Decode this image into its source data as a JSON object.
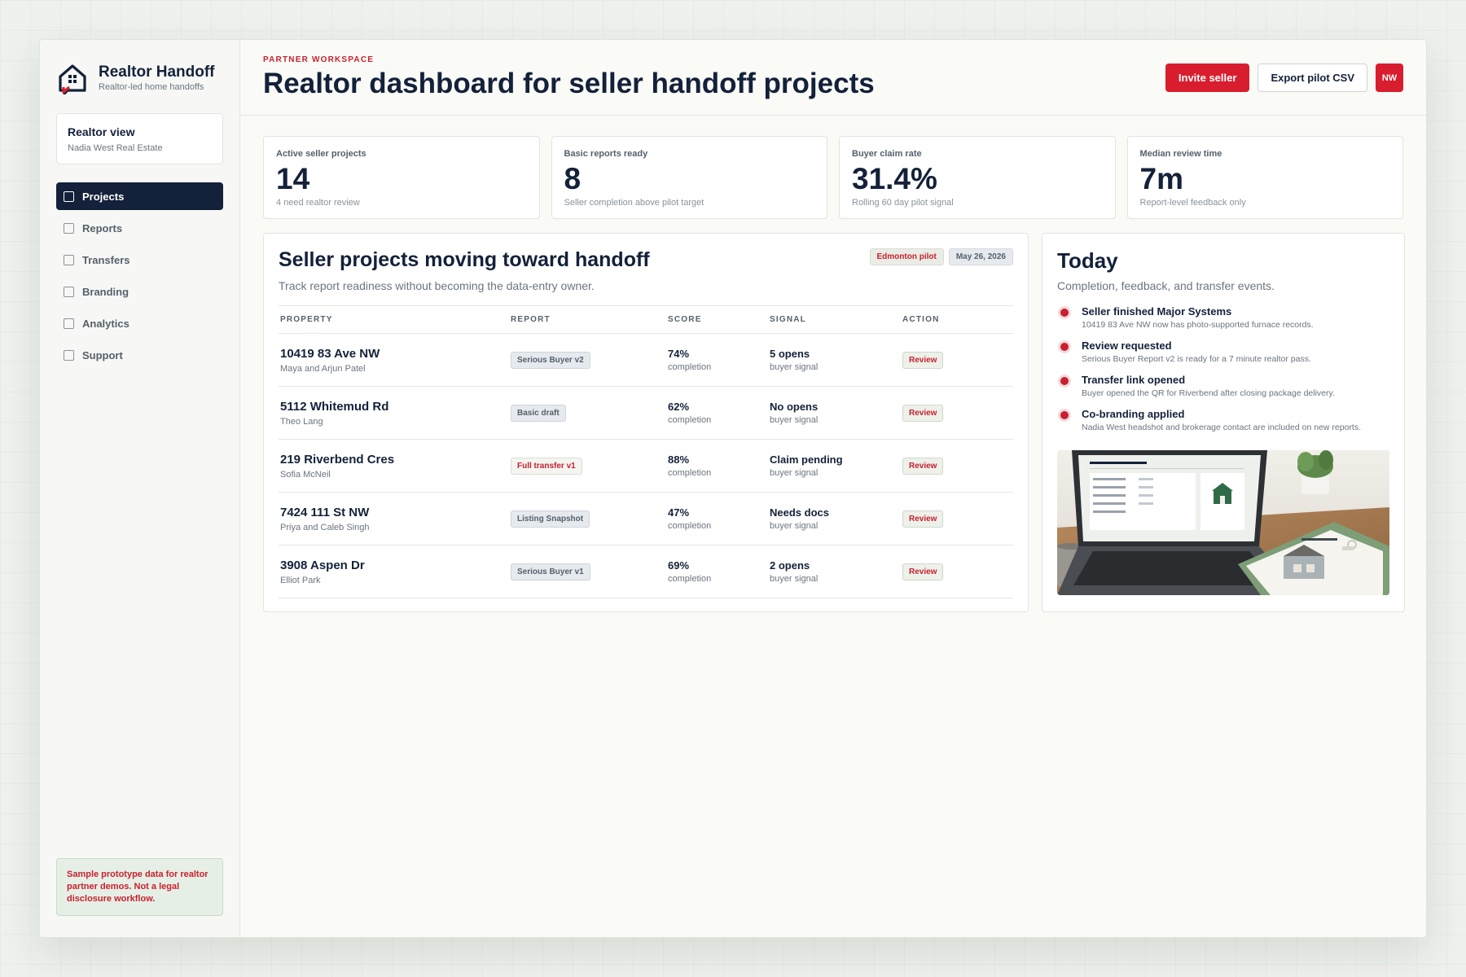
{
  "brand": {
    "title": "Realtor Handoff",
    "subtitle": "Realtor-led home handoffs"
  },
  "realtor_view": {
    "title": "Realtor view",
    "subtitle": "Nadia West Real Estate"
  },
  "nav": [
    {
      "label": "Projects",
      "active": true
    },
    {
      "label": "Reports",
      "active": false
    },
    {
      "label": "Transfers",
      "active": false
    },
    {
      "label": "Branding",
      "active": false
    },
    {
      "label": "Analytics",
      "active": false
    },
    {
      "label": "Support",
      "active": false
    }
  ],
  "disclaimer": "Sample prototype data for realtor partner demos. Not a legal disclosure workflow.",
  "header": {
    "eyebrow": "PARTNER WORKSPACE",
    "title": "Realtor dashboard for seller handoff projects",
    "invite_label": "Invite seller",
    "export_label": "Export pilot CSV",
    "avatar": "NW"
  },
  "stats": [
    {
      "label": "Active seller projects",
      "value": "14",
      "note": "4 need realtor review"
    },
    {
      "label": "Basic reports ready",
      "value": "8",
      "note": "Seller completion above pilot target"
    },
    {
      "label": "Buyer claim rate",
      "value": "31.4%",
      "note": "Rolling 60 day pilot signal"
    },
    {
      "label": "Median review time",
      "value": "7m",
      "note": "Report-level feedback only"
    }
  ],
  "projects": {
    "title": "Seller projects moving toward handoff",
    "subtitle": "Track report readiness without becoming the data-entry owner.",
    "chips": {
      "pilot": "Edmonton pilot",
      "date": "May 26, 2026"
    },
    "columns": [
      "PROPERTY",
      "REPORT",
      "SCORE",
      "SIGNAL",
      "ACTION"
    ],
    "rows": [
      {
        "address": "10419 83 Ave NW",
        "owner": "Maya and Arjun Patel",
        "report": "Serious Buyer v2",
        "report_accent": false,
        "score": "74%",
        "score_note": "completion",
        "signal": "5 opens",
        "signal_note": "buyer signal",
        "action": "Review"
      },
      {
        "address": "5112 Whitemud Rd",
        "owner": "Theo Lang",
        "report": "Basic draft",
        "report_accent": false,
        "score": "62%",
        "score_note": "completion",
        "signal": "No opens",
        "signal_note": "buyer signal",
        "action": "Review"
      },
      {
        "address": "219 Riverbend Cres",
        "owner": "Sofia McNeil",
        "report": "Full transfer v1",
        "report_accent": true,
        "score": "88%",
        "score_note": "completion",
        "signal": "Claim pending",
        "signal_note": "buyer signal",
        "action": "Review"
      },
      {
        "address": "7424 111 St NW",
        "owner": "Priya and Caleb Singh",
        "report": "Listing Snapshot",
        "report_accent": false,
        "score": "47%",
        "score_note": "completion",
        "signal": "Needs docs",
        "signal_note": "buyer signal",
        "action": "Review"
      },
      {
        "address": "3908 Aspen Dr",
        "owner": "Elliot Park",
        "report": "Serious Buyer v1",
        "report_accent": false,
        "score": "69%",
        "score_note": "completion",
        "signal": "2 opens",
        "signal_note": "buyer signal",
        "action": "Review"
      }
    ]
  },
  "today": {
    "title": "Today",
    "subtitle": "Completion, feedback, and transfer events.",
    "events": [
      {
        "title": "Seller finished Major Systems",
        "desc": "10419 83 Ave NW now has photo-supported furnace records."
      },
      {
        "title": "Review requested",
        "desc": "Serious Buyer Report v2 is ready for a 7 minute realtor pass."
      },
      {
        "title": "Transfer link opened",
        "desc": "Buyer opened the QR for Riverbend after closing package delivery."
      },
      {
        "title": "Co-branding applied",
        "desc": "Nadia West headshot and brokerage contact are included on new reports."
      }
    ]
  },
  "colors": {
    "accent_red": "#d81e2e",
    "navy": "#13213a",
    "sage": "#e6efe6"
  }
}
